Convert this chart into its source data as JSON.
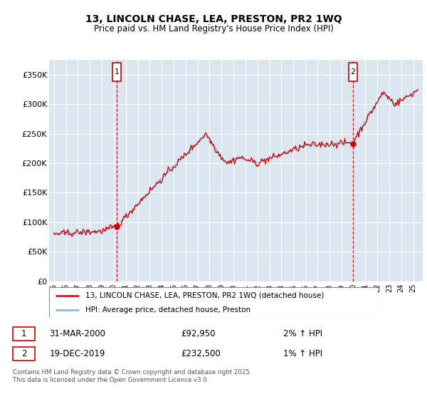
{
  "title_line1": "13, LINCOLN CHASE, LEA, PRESTON, PR2 1WQ",
  "title_line2": "Price paid vs. HM Land Registry's House Price Index (HPI)",
  "legend_label1": "13, LINCOLN CHASE, LEA, PRESTON, PR2 1WQ (detached house)",
  "legend_label2": "HPI: Average price, detached house, Preston",
  "footnote": "Contains HM Land Registry data © Crown copyright and database right 2025.\nThis data is licensed under the Open Government Licence v3.0.",
  "marker1_date": "31-MAR-2000",
  "marker1_price": 92950,
  "marker1_hpi": "2% ↑ HPI",
  "marker2_date": "19-DEC-2019",
  "marker2_price": 232500,
  "marker2_hpi": "1% ↑ HPI",
  "marker1_year": 2000.25,
  "marker1_value": 92950,
  "marker2_year": 2019.96,
  "marker2_value": 232500,
  "ylim_min": 0,
  "ylim_max": 375000,
  "yticks": [
    0,
    50000,
    100000,
    150000,
    200000,
    250000,
    300000,
    350000
  ],
  "ytick_labels": [
    "£0",
    "£50K",
    "£100K",
    "£150K",
    "£200K",
    "£250K",
    "£300K",
    "£350K"
  ],
  "plot_bg_color": "#dce6f0",
  "line_color_hpi": "#7ab4d8",
  "line_color_price": "#cc0000",
  "grid_color": "#ffffff",
  "marker_box_color": "#cc0000",
  "xlim_min": 1994.6,
  "xlim_max": 2025.8
}
